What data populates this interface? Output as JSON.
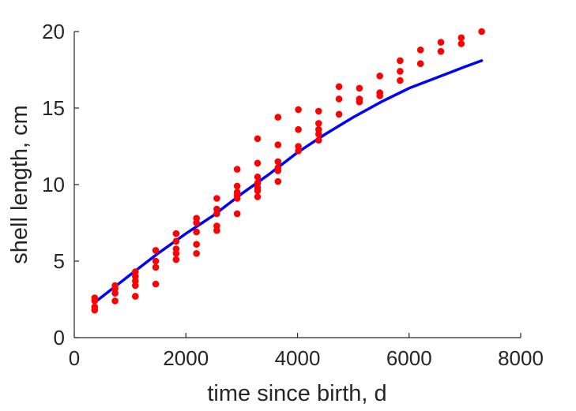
{
  "chart_data": {
    "type": "scatter",
    "xlabel": "time since birth, d",
    "ylabel": "shell length, cm",
    "xlim": [
      0,
      8000
    ],
    "ylim": [
      0,
      20
    ],
    "xticks": [
      "0",
      "2000",
      "4000",
      "6000",
      "8000"
    ],
    "yticks": [
      "0",
      "5",
      "10",
      "15",
      "20"
    ],
    "grid": false,
    "legend": "none",
    "series": [
      {
        "kind": "points",
        "color": "#ff0000",
        "points": [
          [
            365,
            2.6
          ],
          [
            365,
            2.4
          ],
          [
            365,
            2.0
          ],
          [
            365,
            1.8
          ],
          [
            730,
            3.4
          ],
          [
            730,
            3.2
          ],
          [
            730,
            2.9
          ],
          [
            730,
            2.4
          ],
          [
            1095,
            4.3
          ],
          [
            1095,
            4.0
          ],
          [
            1095,
            3.7
          ],
          [
            1095,
            3.4
          ],
          [
            1095,
            2.7
          ],
          [
            1460,
            5.7
          ],
          [
            1460,
            5.0
          ],
          [
            1460,
            4.6
          ],
          [
            1460,
            3.5
          ],
          [
            1825,
            6.8
          ],
          [
            1825,
            6.3
          ],
          [
            1825,
            5.8
          ],
          [
            1825,
            5.5
          ],
          [
            1825,
            5.1
          ],
          [
            2190,
            7.8
          ],
          [
            2190,
            7.5
          ],
          [
            2190,
            6.9
          ],
          [
            2190,
            6.1
          ],
          [
            2190,
            5.5
          ],
          [
            2555,
            9.1
          ],
          [
            2555,
            8.4
          ],
          [
            2555,
            8.1
          ],
          [
            2555,
            7.3
          ],
          [
            2555,
            7.0
          ],
          [
            2920,
            11.0
          ],
          [
            2920,
            9.9
          ],
          [
            2920,
            9.5
          ],
          [
            2920,
            9.3
          ],
          [
            2920,
            9.1
          ],
          [
            2920,
            8.1
          ],
          [
            3285,
            13.0
          ],
          [
            3285,
            11.4
          ],
          [
            3285,
            10.5
          ],
          [
            3285,
            10.1
          ],
          [
            3285,
            9.8
          ],
          [
            3285,
            9.6
          ],
          [
            3285,
            9.2
          ],
          [
            3650,
            14.4
          ],
          [
            3650,
            12.6
          ],
          [
            3650,
            11.5
          ],
          [
            3650,
            11.1
          ],
          [
            3650,
            10.9
          ],
          [
            3650,
            10.2
          ],
          [
            4015,
            14.9
          ],
          [
            4015,
            13.6
          ],
          [
            4015,
            12.5
          ],
          [
            4015,
            12.2
          ],
          [
            4380,
            14.8
          ],
          [
            4380,
            14.0
          ],
          [
            4380,
            13.6
          ],
          [
            4380,
            13.3
          ],
          [
            4380,
            12.9
          ],
          [
            4745,
            16.4
          ],
          [
            4745,
            15.6
          ],
          [
            4745,
            14.6
          ],
          [
            5110,
            16.3
          ],
          [
            5110,
            15.6
          ],
          [
            5110,
            15.4
          ],
          [
            5475,
            17.1
          ],
          [
            5475,
            16.0
          ],
          [
            5475,
            15.8
          ],
          [
            5840,
            18.1
          ],
          [
            5840,
            17.4
          ],
          [
            5840,
            16.8
          ],
          [
            6205,
            18.8
          ],
          [
            6205,
            17.9
          ],
          [
            6570,
            19.3
          ],
          [
            6570,
            18.7
          ],
          [
            6935,
            19.6
          ],
          [
            6935,
            19.2
          ],
          [
            7300,
            20.0
          ]
        ]
      },
      {
        "kind": "line",
        "color": "#0000ff",
        "points": [
          [
            365,
            2.3
          ],
          [
            1000,
            4.1
          ],
          [
            1500,
            5.5
          ],
          [
            2000,
            6.8
          ],
          [
            2500,
            8.0
          ],
          [
            3000,
            9.4
          ],
          [
            3500,
            10.7
          ],
          [
            4000,
            12.1
          ],
          [
            4500,
            13.3
          ],
          [
            5000,
            14.4
          ],
          [
            5500,
            15.4
          ],
          [
            6000,
            16.3
          ],
          [
            6500,
            17.0
          ],
          [
            7000,
            17.7
          ],
          [
            7300,
            18.1
          ]
        ]
      }
    ]
  }
}
